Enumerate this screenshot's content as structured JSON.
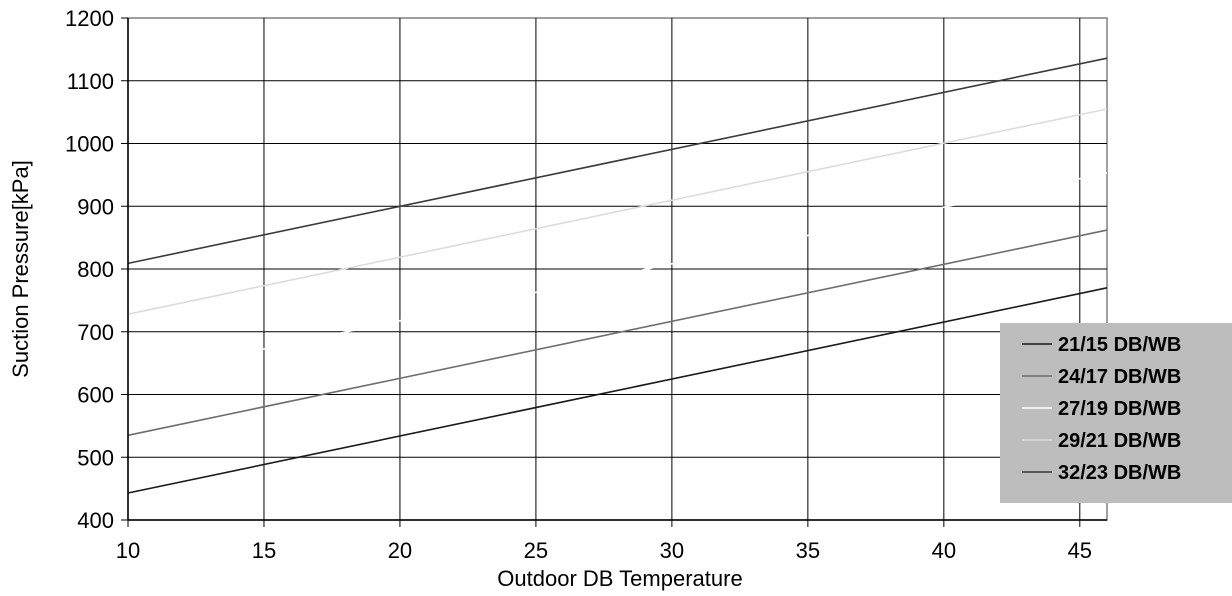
{
  "chart_data": {
    "type": "line",
    "xlabel": "Outdoor DB Temperature",
    "ylabel": "Suction Pressure[kPa]",
    "xlim": [
      10,
      46
    ],
    "ylim": [
      400,
      1200
    ],
    "x_ticks": [
      10,
      15,
      20,
      25,
      30,
      35,
      40,
      45
    ],
    "y_ticks": [
      400,
      500,
      600,
      700,
      800,
      900,
      1000,
      1100,
      1200
    ],
    "grid": true,
    "legend_position": "right",
    "x": [
      10,
      46
    ],
    "series": [
      {
        "name": "21/15 DB/WB",
        "values": [
          443,
          770
        ],
        "color": "#1a1a1a"
      },
      {
        "name": "24/17 DB/WB",
        "values": [
          535,
          862
        ],
        "color": "#6e6e6e"
      },
      {
        "name": "27/19 DB/WB",
        "values": [
          627,
          953
        ],
        "color": "#ffffff"
      },
      {
        "name": "29/21 DB/WB",
        "values": [
          728,
          1055
        ],
        "color": "#dcdcdc"
      },
      {
        "name": "32/23 DB/WB",
        "values": [
          809,
          1136
        ],
        "color": "#3a3a3a"
      }
    ],
    "legend_background": "#bdbdbd",
    "frame_color": "#808080",
    "grid_color": "#000000"
  }
}
